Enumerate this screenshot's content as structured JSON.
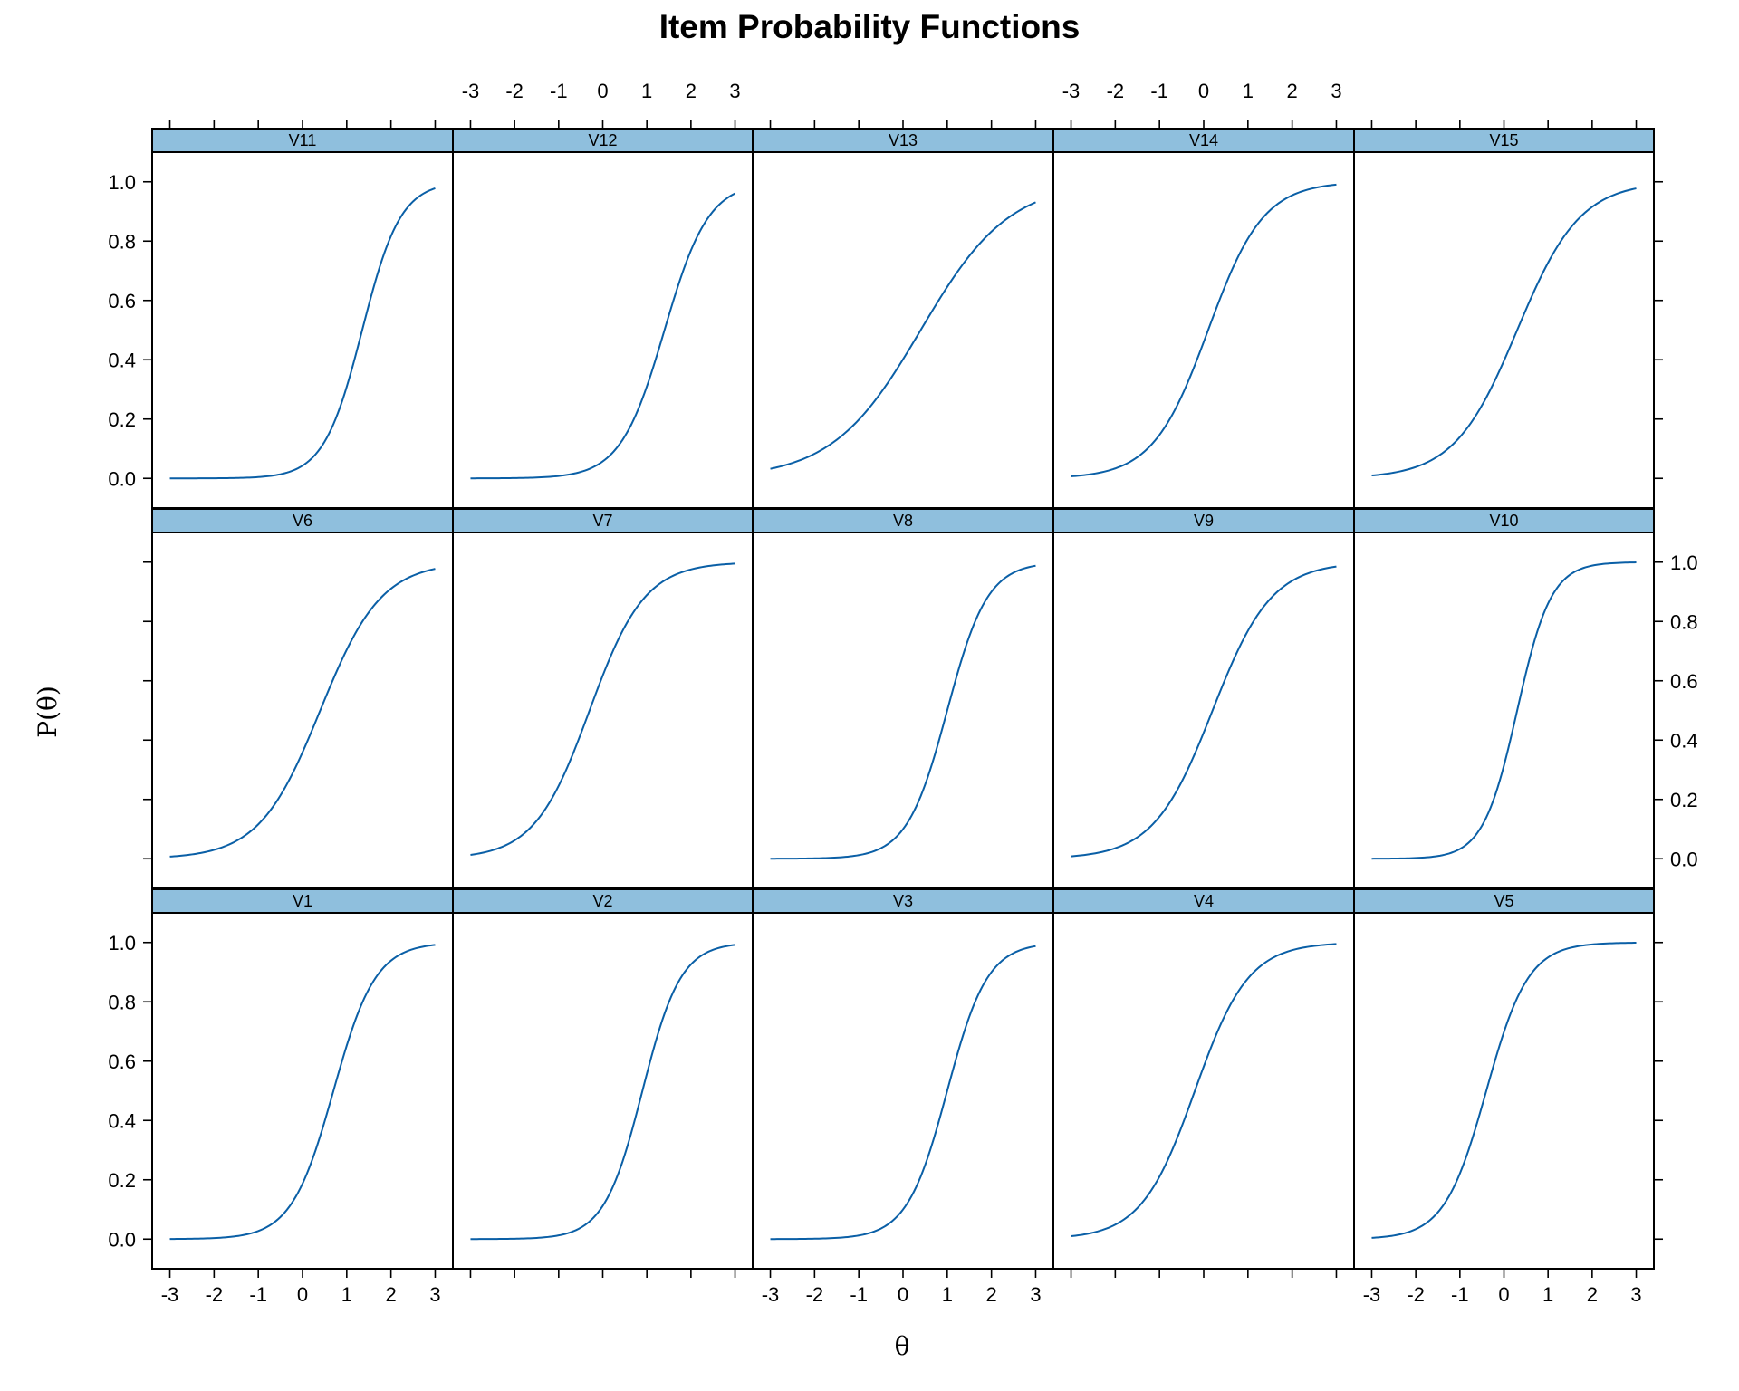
{
  "chart_data": {
    "type": "line",
    "title": "Item Probability Functions",
    "xlabel": "θ",
    "ylabel": "P(θ)",
    "xlim": [
      -3.4,
      3.4
    ],
    "ylim": [
      -0.1,
      1.1
    ],
    "x_ticks": [
      -3,
      -2,
      -1,
      0,
      1,
      2,
      3
    ],
    "y_ticks": [
      0.0,
      0.2,
      0.4,
      0.6,
      0.8,
      1.0
    ],
    "x_tick_labels": [
      "-3",
      "-2",
      "-1",
      "0",
      "1",
      "2",
      "3"
    ],
    "y_tick_labels": [
      "0.0",
      "0.2",
      "0.4",
      "0.6",
      "0.8",
      "1.0"
    ],
    "x_range": [
      -3,
      3
    ],
    "model": "logistic: P(θ) = 1 / (1 + exp(-a·(θ - b)))",
    "layout": {
      "columns": 5,
      "rows": 3
    },
    "colors": {
      "curve": "#0a5fa6",
      "strip": "#8fbfdd",
      "frame": "#000000"
    },
    "panels": [
      {
        "name": "V11",
        "a": 2.3,
        "b": 1.35
      },
      {
        "name": "V12",
        "a": 2.0,
        "b": 1.4
      },
      {
        "name": "V13",
        "a": 1.0,
        "b": 0.4
      },
      {
        "name": "V14",
        "a": 1.6,
        "b": 0.1
      },
      {
        "name": "V15",
        "a": 1.4,
        "b": 0.3
      },
      {
        "name": "V6",
        "a": 1.45,
        "b": 0.4
      },
      {
        "name": "V7",
        "a": 1.6,
        "b": -0.3
      },
      {
        "name": "V8",
        "a": 2.2,
        "b": 1.0
      },
      {
        "name": "V9",
        "a": 1.5,
        "b": 0.2
      },
      {
        "name": "V10",
        "a": 2.6,
        "b": 0.3
      },
      {
        "name": "V1",
        "a": 2.1,
        "b": 0.7
      },
      {
        "name": "V2",
        "a": 2.3,
        "b": 0.9
      },
      {
        "name": "V3",
        "a": 2.2,
        "b": 1.0
      },
      {
        "name": "V4",
        "a": 1.65,
        "b": -0.2
      },
      {
        "name": "V5",
        "a": 2.1,
        "b": -0.4
      }
    ]
  }
}
